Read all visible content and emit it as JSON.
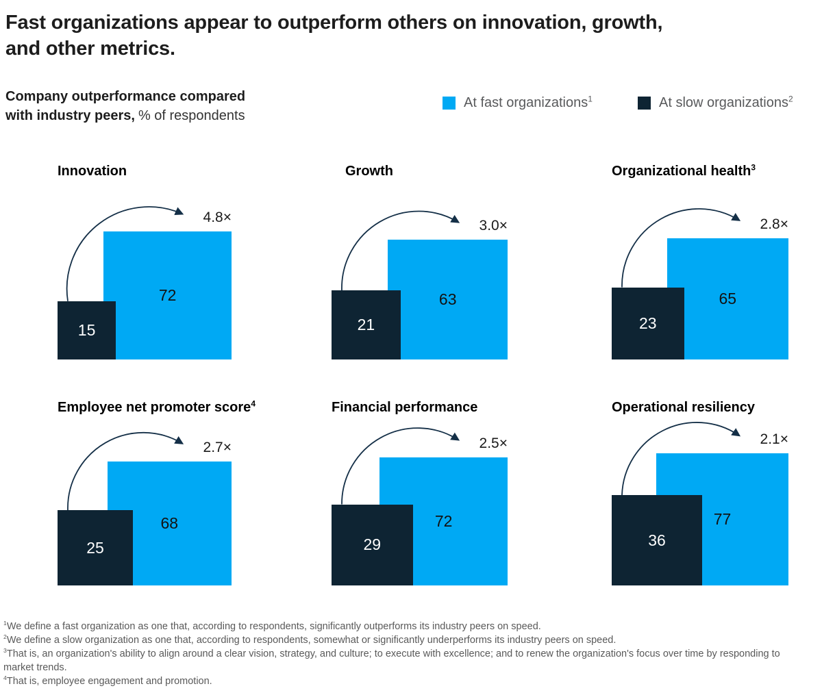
{
  "header": {
    "title_lines": [
      "Fast organizations appear to outperform others on innovation, growth,",
      "and other metrics."
    ],
    "subtitle_bold_line1": "Company outperformance compared",
    "subtitle_bold_line2": "with industry peers,",
    "subtitle_regular": "% of respondents"
  },
  "legend": {
    "items": [
      {
        "label": "At fast organizations",
        "sup": "1",
        "color": "#00A9F4"
      },
      {
        "label": "At slow organizations",
        "sup": "2",
        "color": "#0E2433"
      }
    ]
  },
  "chart_data": {
    "type": "proportional-area-squares",
    "unit": "% of respondents",
    "series_names": [
      "At fast organizations",
      "At slow organizations"
    ],
    "panels": [
      {
        "label": "Innovation",
        "sup": "",
        "fast": 72,
        "slow": 15,
        "multiplier": "4.8×"
      },
      {
        "label": "Growth",
        "sup": "",
        "fast": 63,
        "slow": 21,
        "multiplier": "3.0×"
      },
      {
        "label": "Organizational health",
        "sup": "3",
        "fast": 65,
        "slow": 23,
        "multiplier": "2.8×"
      },
      {
        "label": "Employee net promoter score",
        "sup": "4",
        "fast": 68,
        "slow": 25,
        "multiplier": "2.7×"
      },
      {
        "label": "Financial performance",
        "sup": "",
        "fast": 72,
        "slow": 29,
        "multiplier": "2.5×"
      },
      {
        "label": "Operational resiliency",
        "sup": "",
        "fast": 77,
        "slow": 36,
        "multiplier": "2.1×"
      }
    ],
    "colors": {
      "fast": "#00A9F4",
      "slow": "#0E2433",
      "arrow": "#142F47"
    },
    "layout_note": "square side proportional to sqrt(value); grid off; legend top-right"
  },
  "footnotes": [
    {
      "sup": "1",
      "text": "We define a fast organization as one that, according to respondents, significantly outperforms its industry peers on speed."
    },
    {
      "sup": "2",
      "text": "We define a slow organization as one that, according to respondents, somewhat or significantly underperforms its industry peers on speed."
    },
    {
      "sup": "3",
      "text": "That is, an organization's ability to align around a clear vision, strategy, and culture; to execute with excellence; and to renew the organization's focus over time by responding to market trends."
    },
    {
      "sup": "4",
      "text": "That is, employee engagement and promotion."
    }
  ]
}
